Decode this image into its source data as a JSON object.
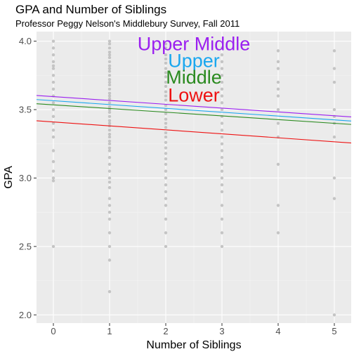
{
  "chart_data": {
    "type": "scatter",
    "title": "GPA and Number of Siblings",
    "subtitle": "Professor Peggy Nelson's Middlebury Survey, Fall 2011",
    "xlabel": "Number of Siblings",
    "ylabel": "GPA",
    "xlim": [
      -0.3,
      5.3
    ],
    "ylim": [
      1.94,
      4.07
    ],
    "xticks": [
      0,
      1,
      2,
      3,
      4,
      5
    ],
    "yticks": [
      2.0,
      2.5,
      3.0,
      3.5,
      4.0
    ],
    "ytick_labels": [
      "2.0",
      "2.5",
      "3.0",
      "3.5",
      "4.0"
    ],
    "grid": true,
    "point_color": "#c4c4c4",
    "points": [
      {
        "x": 0,
        "y": 4.0
      },
      {
        "x": 0,
        "y": 3.95
      },
      {
        "x": 0,
        "y": 3.9
      },
      {
        "x": 0,
        "y": 3.85
      },
      {
        "x": 0,
        "y": 3.82
      },
      {
        "x": 0,
        "y": 3.8
      },
      {
        "x": 0,
        "y": 3.75
      },
      {
        "x": 0,
        "y": 3.7
      },
      {
        "x": 0,
        "y": 3.65
      },
      {
        "x": 0,
        "y": 3.6
      },
      {
        "x": 0,
        "y": 3.55
      },
      {
        "x": 0,
        "y": 3.5
      },
      {
        "x": 0,
        "y": 3.45
      },
      {
        "x": 0,
        "y": 3.4
      },
      {
        "x": 0,
        "y": 3.35
      },
      {
        "x": 0,
        "y": 3.3
      },
      {
        "x": 0,
        "y": 3.2
      },
      {
        "x": 0,
        "y": 3.12
      },
      {
        "x": 0,
        "y": 3.05
      },
      {
        "x": 0,
        "y": 3.0
      },
      {
        "x": 0,
        "y": 2.98
      },
      {
        "x": 0,
        "y": 2.5
      },
      {
        "x": 1,
        "y": 4.0
      },
      {
        "x": 1,
        "y": 3.98
      },
      {
        "x": 1,
        "y": 3.95
      },
      {
        "x": 1,
        "y": 3.92
      },
      {
        "x": 1,
        "y": 3.9
      },
      {
        "x": 1,
        "y": 3.88
      },
      {
        "x": 1,
        "y": 3.85
      },
      {
        "x": 1,
        "y": 3.82
      },
      {
        "x": 1,
        "y": 3.8
      },
      {
        "x": 1,
        "y": 3.78
      },
      {
        "x": 1,
        "y": 3.75
      },
      {
        "x": 1,
        "y": 3.72
      },
      {
        "x": 1,
        "y": 3.7
      },
      {
        "x": 1,
        "y": 3.68
      },
      {
        "x": 1,
        "y": 3.65
      },
      {
        "x": 1,
        "y": 3.62
      },
      {
        "x": 1,
        "y": 3.6
      },
      {
        "x": 1,
        "y": 3.58
      },
      {
        "x": 1,
        "y": 3.55
      },
      {
        "x": 1,
        "y": 3.52
      },
      {
        "x": 1,
        "y": 3.5
      },
      {
        "x": 1,
        "y": 3.48
      },
      {
        "x": 1,
        "y": 3.45
      },
      {
        "x": 1,
        "y": 3.42
      },
      {
        "x": 1,
        "y": 3.4
      },
      {
        "x": 1,
        "y": 3.38
      },
      {
        "x": 1,
        "y": 3.35
      },
      {
        "x": 1,
        "y": 3.32
      },
      {
        "x": 1,
        "y": 3.3
      },
      {
        "x": 1,
        "y": 3.27
      },
      {
        "x": 1,
        "y": 3.25
      },
      {
        "x": 1,
        "y": 3.22
      },
      {
        "x": 1,
        "y": 3.2
      },
      {
        "x": 1,
        "y": 3.15
      },
      {
        "x": 1,
        "y": 3.1
      },
      {
        "x": 1,
        "y": 3.05
      },
      {
        "x": 1,
        "y": 3.0
      },
      {
        "x": 1,
        "y": 2.97
      },
      {
        "x": 1,
        "y": 2.93
      },
      {
        "x": 1,
        "y": 2.85
      },
      {
        "x": 1,
        "y": 2.8
      },
      {
        "x": 1,
        "y": 2.75
      },
      {
        "x": 1,
        "y": 2.7
      },
      {
        "x": 1,
        "y": 2.6
      },
      {
        "x": 1,
        "y": 2.5
      },
      {
        "x": 1,
        "y": 2.4
      },
      {
        "x": 1,
        "y": 2.17
      },
      {
        "x": 2,
        "y": 3.98
      },
      {
        "x": 2,
        "y": 3.95
      },
      {
        "x": 2,
        "y": 3.9
      },
      {
        "x": 2,
        "y": 3.87
      },
      {
        "x": 2,
        "y": 3.84
      },
      {
        "x": 2,
        "y": 3.8
      },
      {
        "x": 2,
        "y": 3.77
      },
      {
        "x": 2,
        "y": 3.74
      },
      {
        "x": 2,
        "y": 3.7
      },
      {
        "x": 2,
        "y": 3.67
      },
      {
        "x": 2,
        "y": 3.63
      },
      {
        "x": 2,
        "y": 3.6
      },
      {
        "x": 2,
        "y": 3.57
      },
      {
        "x": 2,
        "y": 3.53
      },
      {
        "x": 2,
        "y": 3.5
      },
      {
        "x": 2,
        "y": 3.47
      },
      {
        "x": 2,
        "y": 3.43
      },
      {
        "x": 2,
        "y": 3.4
      },
      {
        "x": 2,
        "y": 3.37
      },
      {
        "x": 2,
        "y": 3.33
      },
      {
        "x": 2,
        "y": 3.3
      },
      {
        "x": 2,
        "y": 3.26
      },
      {
        "x": 2,
        "y": 3.22
      },
      {
        "x": 2,
        "y": 3.18
      },
      {
        "x": 2,
        "y": 3.14
      },
      {
        "x": 2,
        "y": 3.1
      },
      {
        "x": 2,
        "y": 3.05
      },
      {
        "x": 2,
        "y": 3.0
      },
      {
        "x": 2,
        "y": 2.95
      },
      {
        "x": 2,
        "y": 2.9
      },
      {
        "x": 2,
        "y": 2.85
      },
      {
        "x": 2,
        "y": 2.8
      },
      {
        "x": 2,
        "y": 2.7
      },
      {
        "x": 2,
        "y": 2.6
      },
      {
        "x": 2,
        "y": 2.5
      },
      {
        "x": 3,
        "y": 3.95
      },
      {
        "x": 3,
        "y": 3.9
      },
      {
        "x": 3,
        "y": 3.85
      },
      {
        "x": 3,
        "y": 3.8
      },
      {
        "x": 3,
        "y": 3.75
      },
      {
        "x": 3,
        "y": 3.7
      },
      {
        "x": 3,
        "y": 3.65
      },
      {
        "x": 3,
        "y": 3.6
      },
      {
        "x": 3,
        "y": 3.55
      },
      {
        "x": 3,
        "y": 3.5
      },
      {
        "x": 3,
        "y": 3.45
      },
      {
        "x": 3,
        "y": 3.4
      },
      {
        "x": 3,
        "y": 3.35
      },
      {
        "x": 3,
        "y": 3.3
      },
      {
        "x": 3,
        "y": 3.25
      },
      {
        "x": 3,
        "y": 3.2
      },
      {
        "x": 3,
        "y": 3.15
      },
      {
        "x": 3,
        "y": 3.1
      },
      {
        "x": 3,
        "y": 3.05
      },
      {
        "x": 3,
        "y": 3.0
      },
      {
        "x": 3,
        "y": 2.95
      },
      {
        "x": 3,
        "y": 2.9
      },
      {
        "x": 3,
        "y": 2.8
      },
      {
        "x": 3,
        "y": 2.7
      },
      {
        "x": 3,
        "y": 2.6
      },
      {
        "x": 3,
        "y": 2.5
      },
      {
        "x": 4,
        "y": 3.93
      },
      {
        "x": 4,
        "y": 3.85
      },
      {
        "x": 4,
        "y": 3.8
      },
      {
        "x": 4,
        "y": 3.7
      },
      {
        "x": 4,
        "y": 3.65
      },
      {
        "x": 4,
        "y": 3.6
      },
      {
        "x": 4,
        "y": 3.5
      },
      {
        "x": 4,
        "y": 3.4
      },
      {
        "x": 4,
        "y": 3.3
      },
      {
        "x": 4,
        "y": 3.1
      },
      {
        "x": 4,
        "y": 2.8
      },
      {
        "x": 4,
        "y": 2.6
      },
      {
        "x": 5,
        "y": 3.93
      },
      {
        "x": 5,
        "y": 3.8
      },
      {
        "x": 5,
        "y": 3.7
      },
      {
        "x": 5,
        "y": 3.5
      },
      {
        "x": 5,
        "y": 3.45
      },
      {
        "x": 5,
        "y": 3.4
      },
      {
        "x": 5,
        "y": 3.3
      },
      {
        "x": 5,
        "y": 3.0
      },
      {
        "x": 5,
        "y": 2.85
      },
      {
        "x": 5,
        "y": 2.0
      }
    ],
    "series": [
      {
        "name": "Upper Middle",
        "color": "#9b1ff0",
        "intercept": 3.595,
        "slope": -0.028
      },
      {
        "name": "Upper",
        "color": "#1aa7ef",
        "intercept": 3.565,
        "slope": -0.028
      },
      {
        "name": "Middle",
        "color": "#2a8a1f",
        "intercept": 3.535,
        "slope": -0.027
      },
      {
        "name": "Lower",
        "color": "#ee1111",
        "intercept": 3.41,
        "slope": -0.029
      }
    ],
    "annotations": [
      {
        "text": "Upper Middle",
        "color": "#9b1ff0",
        "x": 2.5,
        "y": 3.935
      },
      {
        "text": "Upper",
        "color": "#1aa7ef",
        "x": 2.5,
        "y": 3.81
      },
      {
        "text": "Middle",
        "color": "#2a8a1f",
        "x": 2.5,
        "y": 3.69
      },
      {
        "text": "Lower",
        "color": "#ee1111",
        "x": 2.5,
        "y": 3.56
      }
    ]
  }
}
